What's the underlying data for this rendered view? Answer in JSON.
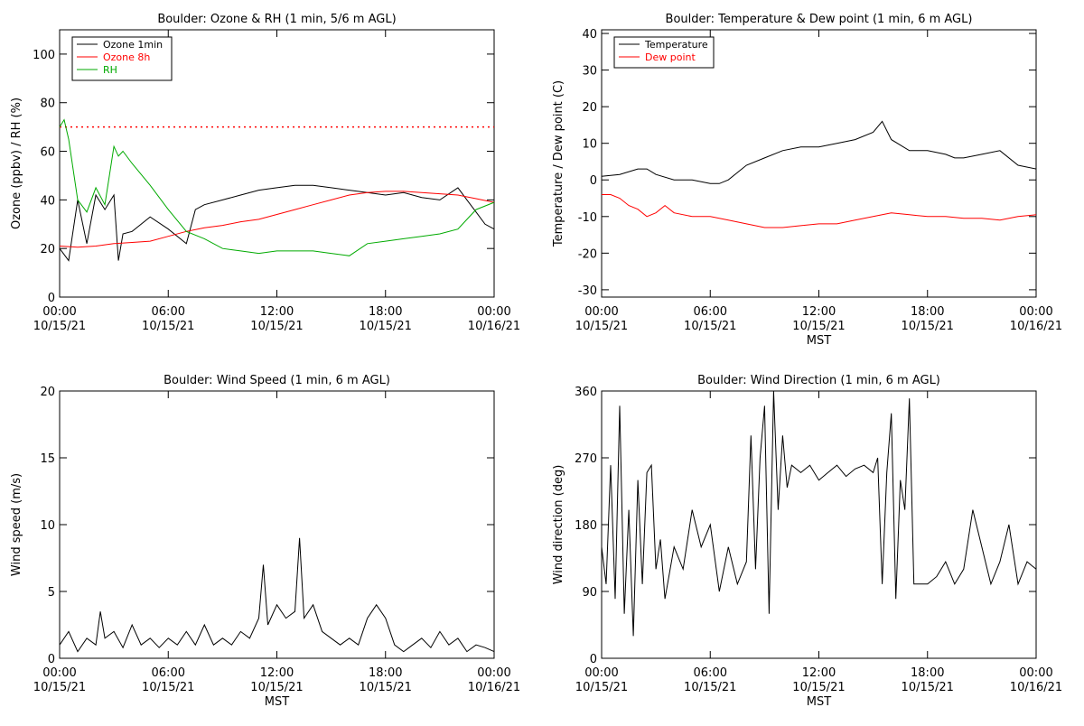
{
  "chart_data": [
    {
      "type": "line",
      "title": "Boulder: Ozone & RH (1 min, 5/6 m AGL)",
      "xlabel": "",
      "ylabel": "Ozone (ppbv) / RH (%)",
      "xlim": [
        "10/15/21 00:00",
        "10/16/21 00:00"
      ],
      "ylim": [
        0,
        110
      ],
      "yticks": [
        0,
        20,
        40,
        60,
        80,
        100
      ],
      "xticks": [
        {
          "time": "00:00",
          "date": "10/15/21"
        },
        {
          "time": "06:00",
          "date": "10/15/21"
        },
        {
          "time": "12:00",
          "date": "10/15/21"
        },
        {
          "time": "18:00",
          "date": "10/15/21"
        },
        {
          "time": "00:00",
          "date": "10/16/21"
        }
      ],
      "legend_position": "top-left",
      "reference_line": {
        "y": 70,
        "color": "#ff0000",
        "style": "dotted"
      },
      "series": [
        {
          "name": "Ozone 1min",
          "color": "#000000",
          "x": [
            0,
            0.5,
            1,
            1.5,
            2,
            2.5,
            3,
            3.25,
            3.5,
            4,
            5,
            6,
            7,
            7.5,
            8,
            9,
            10,
            11,
            12,
            13,
            14,
            15,
            16,
            17,
            18,
            19,
            20,
            21,
            22,
            22.5,
            23,
            23.5,
            24
          ],
          "y": [
            20,
            15,
            40,
            22,
            42,
            36,
            42,
            15,
            26,
            27,
            33,
            28,
            22,
            36,
            38,
            40,
            42,
            44,
            45,
            46,
            46,
            45,
            44,
            43,
            42,
            43,
            41,
            40,
            45,
            40,
            35,
            30,
            28
          ]
        },
        {
          "name": "Ozone 8h",
          "color": "#ff0000",
          "x": [
            0,
            1,
            2,
            3,
            4,
            5,
            6,
            7,
            8,
            9,
            10,
            11,
            12,
            13,
            14,
            15,
            16,
            17,
            18,
            19,
            20,
            21,
            22,
            23,
            24
          ],
          "y": [
            21,
            20.5,
            21,
            22,
            22.5,
            23,
            25,
            27,
            28.5,
            29.5,
            31,
            32,
            34,
            36,
            38,
            40,
            42,
            43,
            43.5,
            43.5,
            43,
            42.5,
            42,
            40.5,
            39
          ]
        },
        {
          "name": "RH",
          "color": "#00aa00",
          "x": [
            0,
            0.25,
            0.5,
            1,
            1.5,
            2,
            2.5,
            3,
            3.25,
            3.5,
            4,
            5,
            6,
            7,
            8,
            9,
            10,
            11,
            12,
            13,
            14,
            15,
            16,
            17,
            18,
            19,
            20,
            21,
            22,
            23,
            24
          ],
          "y": [
            70,
            73,
            65,
            40,
            35,
            45,
            38,
            62,
            58,
            60,
            55,
            46,
            36,
            27,
            24,
            20,
            19,
            18,
            19,
            19,
            19,
            18,
            17,
            22,
            23,
            24,
            25,
            26,
            28,
            36,
            39
          ]
        }
      ]
    },
    {
      "type": "line",
      "title": "Boulder: Temperature & Dew point (1 min, 6 m AGL)",
      "xlabel": "MST",
      "ylabel": "Temperature / Dew point (C)",
      "xlim": [
        "10/15/21 00:00",
        "10/16/21 00:00"
      ],
      "ylim": [
        -32,
        41
      ],
      "yticks": [
        -30,
        -20,
        -10,
        0,
        10,
        20,
        30,
        40
      ],
      "xticks": [
        {
          "time": "00:00",
          "date": "10/15/21"
        },
        {
          "time": "06:00",
          "date": "10/15/21"
        },
        {
          "time": "12:00",
          "date": "10/15/21"
        },
        {
          "time": "18:00",
          "date": "10/15/21"
        },
        {
          "time": "00:00",
          "date": "10/16/21"
        }
      ],
      "legend_position": "top-left",
      "series": [
        {
          "name": "Temperature",
          "color": "#000000",
          "x": [
            0,
            1,
            2,
            2.5,
            3,
            4,
            5,
            6,
            6.5,
            7,
            8,
            9,
            10,
            11,
            12,
            13,
            14,
            15,
            15.5,
            16,
            17,
            18,
            19,
            19.5,
            20,
            21,
            22,
            23,
            24
          ],
          "y": [
            1,
            1.5,
            3,
            3,
            1.5,
            0,
            0,
            -1,
            -1,
            0,
            4,
            6,
            8,
            9,
            9,
            10,
            11,
            13,
            16,
            11,
            8,
            8,
            7,
            6,
            6,
            7,
            8,
            4,
            3
          ]
        },
        {
          "name": "Dew point",
          "color": "#ff0000",
          "x": [
            0,
            0.5,
            1,
            1.5,
            2,
            2.5,
            3,
            3.5,
            4,
            5,
            6,
            7,
            8,
            9,
            10,
            11,
            12,
            13,
            14,
            15,
            16,
            17,
            18,
            19,
            20,
            21,
            22,
            23,
            24
          ],
          "y": [
            -4,
            -4,
            -5,
            -7,
            -8,
            -10,
            -9,
            -7,
            -9,
            -10,
            -10,
            -11,
            -12,
            -13,
            -13,
            -12.5,
            -12,
            -12,
            -11,
            -10,
            -9,
            -9.5,
            -10,
            -10,
            -10.5,
            -10.5,
            -11,
            -10,
            -9.5
          ]
        }
      ]
    },
    {
      "type": "line",
      "title": "Boulder: Wind Speed (1 min, 6 m AGL)",
      "xlabel": "MST",
      "ylabel": "Wind speed (m/s)",
      "xlim": [
        "10/15/21 00:00",
        "10/16/21 00:00"
      ],
      "ylim": [
        0,
        20
      ],
      "yticks": [
        0,
        5,
        10,
        15,
        20
      ],
      "xticks": [
        {
          "time": "00:00",
          "date": "10/15/21"
        },
        {
          "time": "06:00",
          "date": "10/15/21"
        },
        {
          "time": "12:00",
          "date": "10/15/21"
        },
        {
          "time": "18:00",
          "date": "10/15/21"
        },
        {
          "time": "00:00",
          "date": "10/16/21"
        }
      ],
      "series": [
        {
          "color": "#000000",
          "x": [
            0,
            0.5,
            1,
            1.5,
            2,
            2.25,
            2.5,
            3,
            3.5,
            4,
            4.5,
            5,
            5.5,
            6,
            6.5,
            7,
            7.5,
            8,
            8.5,
            9,
            9.5,
            10,
            10.5,
            11,
            11.25,
            11.5,
            12,
            12.5,
            13,
            13.25,
            13.5,
            14,
            14.5,
            15,
            15.5,
            16,
            16.5,
            17,
            17.5,
            18,
            18.5,
            19,
            19.5,
            20,
            20.5,
            21,
            21.5,
            22,
            22.5,
            23,
            23.5,
            24
          ],
          "y": [
            1,
            2,
            0.5,
            1.5,
            1,
            3.5,
            1.5,
            2,
            0.8,
            2.5,
            1,
            1.5,
            0.8,
            1.5,
            1,
            2,
            1,
            2.5,
            1,
            1.5,
            1,
            2,
            1.5,
            3,
            7,
            2.5,
            4,
            3,
            3.5,
            9,
            3,
            4,
            2,
            1.5,
            1,
            1.5,
            1,
            3,
            4,
            3,
            1,
            0.5,
            1,
            1.5,
            0.8,
            2,
            1,
            1.5,
            0.5,
            1,
            0.8,
            0.5
          ]
        }
      ]
    },
    {
      "type": "line",
      "title": "Boulder: Wind Direction (1 min, 6 m AGL)",
      "xlabel": "MST",
      "ylabel": "Wind direction (deg)",
      "xlim": [
        "10/15/21 00:00",
        "10/16/21 00:00"
      ],
      "ylim": [
        0,
        360
      ],
      "yticks": [
        0,
        90,
        180,
        270,
        360
      ],
      "xticks": [
        {
          "time": "00:00",
          "date": "10/15/21"
        },
        {
          "time": "06:00",
          "date": "10/15/21"
        },
        {
          "time": "12:00",
          "date": "10/15/21"
        },
        {
          "time": "18:00",
          "date": "10/15/21"
        },
        {
          "time": "00:00",
          "date": "10/16/21"
        }
      ],
      "series": [
        {
          "color": "#000000",
          "x": [
            0,
            0.25,
            0.5,
            0.75,
            1,
            1.25,
            1.5,
            1.75,
            2,
            2.25,
            2.5,
            2.75,
            3,
            3.25,
            3.5,
            4,
            4.5,
            5,
            5.5,
            6,
            6.5,
            7,
            7.5,
            8,
            8.25,
            8.5,
            8.75,
            9,
            9.25,
            9.5,
            9.75,
            10,
            10.25,
            10.5,
            11,
            11.5,
            12,
            12.5,
            13,
            13.5,
            14,
            14.5,
            15,
            15.25,
            15.5,
            15.75,
            16,
            16.25,
            16.5,
            16.75,
            17,
            17.25,
            17.5,
            18,
            18.5,
            19,
            19.5,
            20,
            20.5,
            21,
            21.5,
            22,
            22.5,
            23,
            23.5,
            24
          ],
          "y": [
            150,
            100,
            260,
            80,
            340,
            60,
            200,
            30,
            240,
            100,
            250,
            260,
            120,
            160,
            80,
            150,
            120,
            200,
            150,
            180,
            90,
            150,
            100,
            130,
            300,
            120,
            270,
            340,
            60,
            360,
            200,
            300,
            230,
            260,
            250,
            260,
            240,
            250,
            260,
            245,
            255,
            260,
            250,
            270,
            100,
            250,
            330,
            80,
            240,
            200,
            350,
            100,
            100,
            100,
            110,
            130,
            100,
            120,
            200,
            150,
            100,
            130,
            180,
            100,
            130,
            120
          ]
        }
      ]
    }
  ]
}
